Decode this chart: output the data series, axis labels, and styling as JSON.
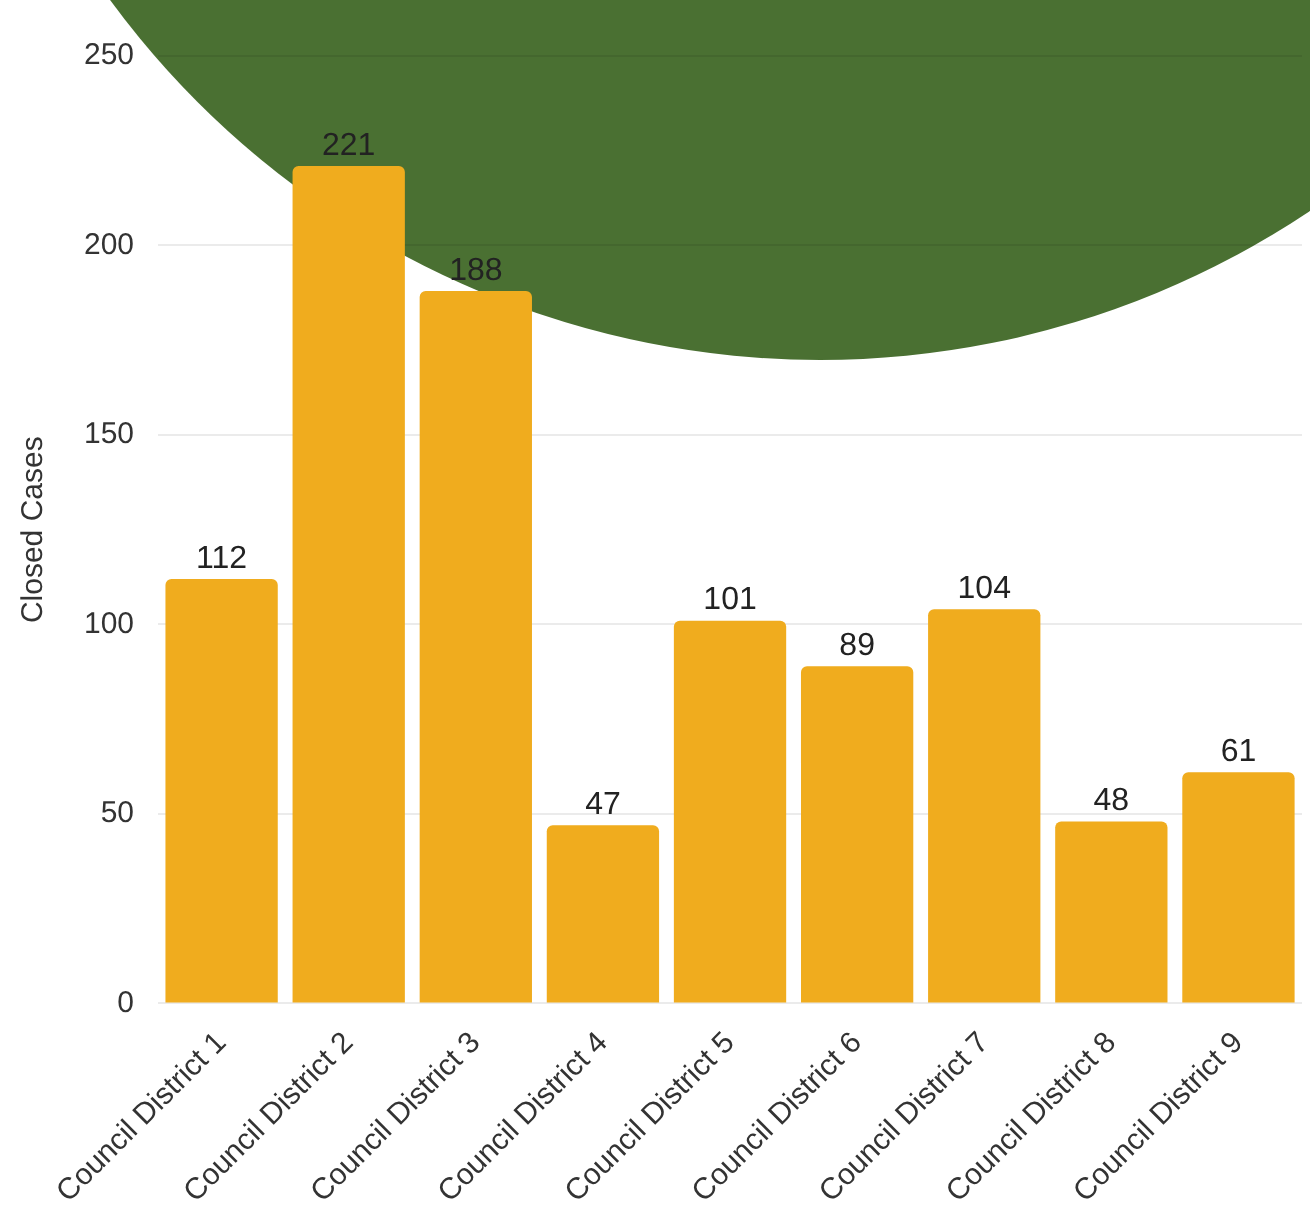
{
  "chart_data": {
    "type": "bar",
    "ylabel": "Closed Cases",
    "categories": [
      "Council District 1",
      "Council District 2",
      "Council District 3",
      "Council District 4",
      "Council District 5",
      "Council District 6",
      "Council District 7",
      "Council District 8",
      "Council District 9"
    ],
    "values": [
      112,
      221,
      188,
      47,
      101,
      89,
      104,
      48,
      61
    ],
    "color": "#f0ac1e",
    "ylim": [
      0,
      250
    ],
    "yticks": [
      0,
      50,
      100,
      150,
      200,
      250
    ],
    "grid": "y",
    "data_labels": true
  }
}
